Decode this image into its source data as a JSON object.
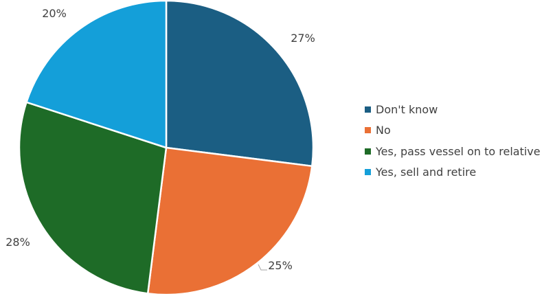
{
  "chart_data": {
    "type": "pie",
    "categories": [
      "Don't know",
      "No",
      "Yes, pass vessel on to relative",
      "Yes, sell and retire"
    ],
    "values": [
      27,
      25,
      28,
      20
    ],
    "value_labels": [
      "27%",
      "25%",
      "28%",
      "20%"
    ],
    "colors": [
      "#1b5e83",
      "#ea7035",
      "#1e6b27",
      "#149fd9"
    ],
    "start_angle_deg": 0,
    "direction": "clockwise",
    "legend_position": "right"
  }
}
